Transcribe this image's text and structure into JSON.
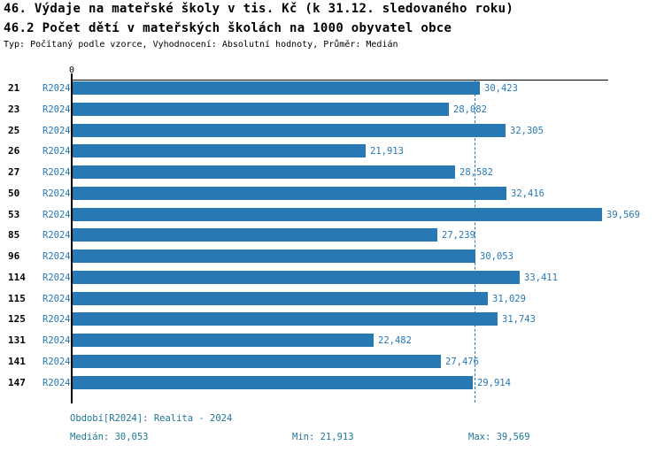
{
  "header": {
    "title1": "46. Výdaje na mateřské školy v tis. Kč (k 31.12. sledovaného roku)",
    "title2": "46.2 Počet dětí v mateřských školách na 1000 obyvatel obce",
    "subtitle": "Typ: Počítaný podle vzorce, Vyhodnocení: Absolutní hodnoty, Průměr: Medián"
  },
  "axis": {
    "zero_label": "0"
  },
  "chart_data": {
    "type": "bar",
    "orientation": "horizontal",
    "title": "46. Výdaje na mateřské školy v tis. Kč (k 31.12. sledovaného roku)",
    "subtitle": "46.2 Počet dětí v mateřských školách na 1000 obyvatel obce",
    "categories": [
      "21",
      "23",
      "25",
      "26",
      "27",
      "50",
      "53",
      "85",
      "96",
      "114",
      "115",
      "125",
      "131",
      "141",
      "147"
    ],
    "series_label": "R2024",
    "values": [
      30423,
      28082,
      32305,
      21913,
      28582,
      32416,
      39569,
      27239,
      30053,
      33411,
      31029,
      31743,
      22482,
      27476,
      29914
    ],
    "value_labels": [
      "30,423",
      "28,082",
      "32,305",
      "21,913",
      "28,582",
      "32,416",
      "39,569",
      "27,239",
      "30,053",
      "33,411",
      "31,029",
      "31,743",
      "22,482",
      "27,476",
      "29,914"
    ],
    "xlim": [
      0,
      40000
    ],
    "median": 30053,
    "min": 21913,
    "max": 39569,
    "grid": false,
    "legend_position": "none",
    "bar_color": "#2878b4",
    "median_line_color": "#2878b4"
  },
  "footer": {
    "period": "Období[R2024]: Realita - 2024",
    "median": "Medián: 30,053",
    "min": "Min: 21,913",
    "max": "Max: 39,569"
  },
  "colors": {
    "bar": "#2878b4",
    "chart_text": "#2878b4",
    "footer_text": "#1d7796",
    "axis": "#000000",
    "background": "#ffffff"
  }
}
